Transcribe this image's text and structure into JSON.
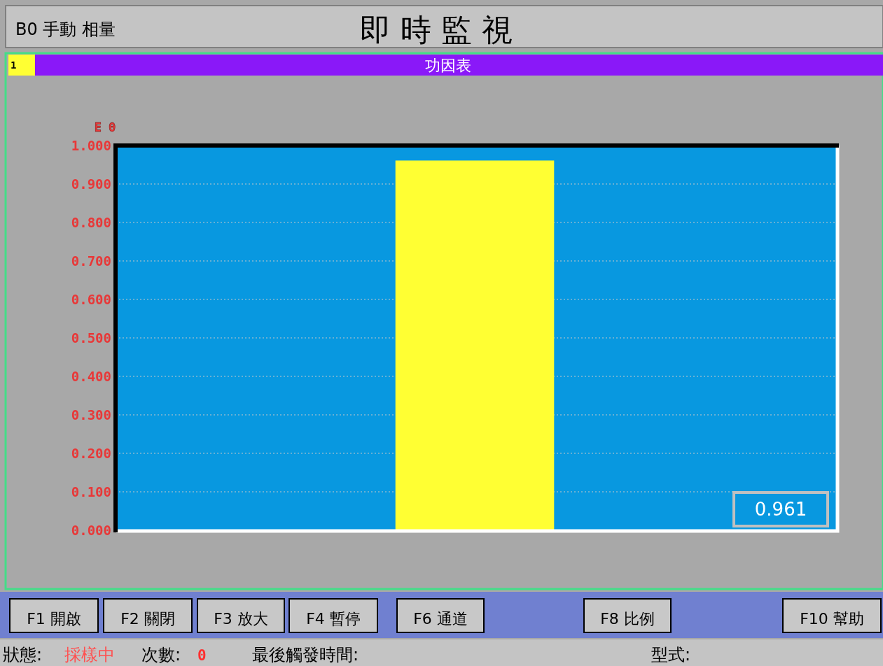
{
  "chart_data": {
    "type": "bar",
    "title": "即時監視",
    "subtitle": "功因表",
    "ylabel": "E 0",
    "categories": [
      null
    ],
    "values": [
      0.961
    ],
    "color": "#ffff33",
    "ylim": [
      0,
      1
    ],
    "yticks": [
      {
        "value": 0,
        "label": "0.000"
      },
      {
        "value": 0.1,
        "label": "0.100"
      },
      {
        "value": 0.2,
        "label": "0.200"
      },
      {
        "value": 0.3,
        "label": "0.300"
      },
      {
        "value": 0.4,
        "label": "0.400"
      },
      {
        "value": 0.5,
        "label": "0.500"
      },
      {
        "value": 0.6,
        "label": "0.600"
      },
      {
        "value": 0.7,
        "label": "0.700"
      },
      {
        "value": 0.8,
        "label": "0.800"
      },
      {
        "value": 0.9,
        "label": "0.900"
      },
      {
        "value": 1,
        "label": "1.000"
      }
    ],
    "grid": "y",
    "annotations": [
      "B0 手動 相量",
      "1",
      "0.961",
      "F1 開啟",
      "F2 關閉",
      "F3 放大",
      "F4 暫停",
      "F6 通道",
      "F8 比例",
      "F10 幫助",
      "狀態:",
      "採樣中",
      "次數:",
      "0",
      "最後觸發時間:",
      "型式:"
    ]
  }
}
